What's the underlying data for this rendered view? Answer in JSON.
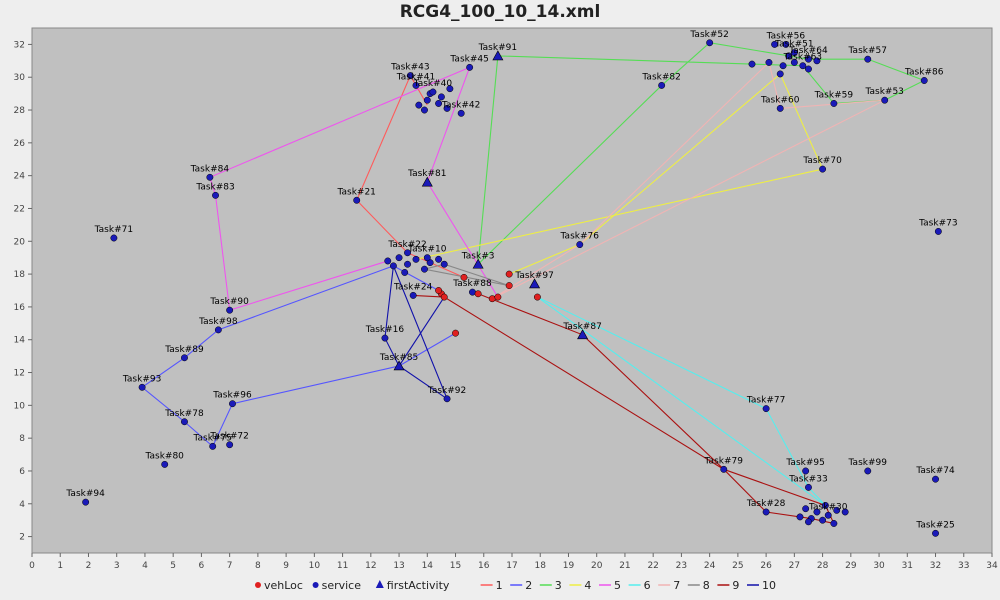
{
  "chart_data": {
    "type": "scatter",
    "title": "RCG4_100_10_14.xml",
    "xlim": [
      0,
      34
    ],
    "ylim": [
      1,
      33
    ],
    "xticks": [
      0,
      1,
      2,
      3,
      4,
      5,
      6,
      7,
      8,
      9,
      10,
      11,
      12,
      13,
      14,
      15,
      16,
      17,
      18,
      19,
      20,
      21,
      22,
      23,
      24,
      25,
      26,
      27,
      28,
      29,
      30,
      31,
      32,
      33,
      34
    ],
    "yticks": [
      2,
      4,
      6,
      8,
      10,
      12,
      14,
      16,
      18,
      20,
      22,
      24,
      26,
      28,
      30,
      32
    ],
    "colors": {
      "plot_bg": "#c0c0c0",
      "vehLoc": "#e02020",
      "service": "#1a1ab8",
      "firstActivity": "#1a1ab8",
      "route_1": "#ff5a5a",
      "route_2": "#5555ff",
      "route_3": "#55dd55",
      "route_4": "#eeee44",
      "route_5": "#ee55ee",
      "route_6": "#55eeee",
      "route_7": "#f0b4b4",
      "route_8": "#888888",
      "route_9": "#aa1111",
      "route_10": "#1111aa"
    },
    "legend": [
      {
        "label": "vehLoc",
        "marker": "circle",
        "color": "#e02020"
      },
      {
        "label": "service",
        "marker": "circle",
        "color": "#1a1ab8"
      },
      {
        "label": "firstActivity",
        "marker": "triangle",
        "color": "#1a1ab8"
      },
      {
        "label": "1",
        "marker": "line",
        "color": "#ff5a5a"
      },
      {
        "label": "2",
        "marker": "line",
        "color": "#5555ff"
      },
      {
        "label": "3",
        "marker": "line",
        "color": "#55dd55"
      },
      {
        "label": "4",
        "marker": "line",
        "color": "#eeee44"
      },
      {
        "label": "5",
        "marker": "line",
        "color": "#ee55ee"
      },
      {
        "label": "6",
        "marker": "line",
        "color": "#55eeee"
      },
      {
        "label": "7",
        "marker": "line",
        "color": "#f0b4b4"
      },
      {
        "label": "8",
        "marker": "line",
        "color": "#888888"
      },
      {
        "label": "9",
        "marker": "line",
        "color": "#aa1111"
      },
      {
        "label": "10",
        "marker": "line",
        "color": "#1111aa"
      }
    ],
    "vehLoc": [
      [
        14.5,
        16.8
      ],
      [
        14.6,
        16.6
      ],
      [
        15.3,
        17.8
      ],
      [
        15.8,
        16.8
      ],
      [
        16.3,
        16.5
      ],
      [
        16.5,
        16.6
      ],
      [
        16.9,
        17.3
      ],
      [
        16.9,
        18.0
      ],
      [
        17.9,
        16.6
      ],
      [
        15.0,
        14.4
      ],
      [
        14.4,
        17.0
      ]
    ],
    "service": [
      {
        "name": "Task#91",
        "x": 16.5,
        "y": 31.3,
        "first": true
      },
      {
        "name": "Task#52",
        "x": 24.0,
        "y": 32.1
      },
      {
        "name": "Task#56",
        "x": 26.7,
        "y": 32.0
      },
      {
        "name": "Task#51",
        "x": 27.0,
        "y": 31.5
      },
      {
        "name": "Task#64",
        "x": 27.5,
        "y": 31.1
      },
      {
        "name": "Task#57",
        "x": 29.6,
        "y": 31.1
      },
      {
        "name": "Task#63",
        "x": 27.3,
        "y": 30.7
      },
      {
        "name": "Task#86",
        "x": 31.6,
        "y": 29.8
      },
      {
        "name": "Task#45",
        "x": 15.5,
        "y": 30.6
      },
      {
        "name": "Task#43",
        "x": 13.4,
        "y": 30.1
      },
      {
        "name": "Task#41",
        "x": 13.6,
        "y": 29.5
      },
      {
        "name": "Task#40",
        "x": 14.2,
        "y": 29.1
      },
      {
        "name": "Task#42",
        "x": 15.2,
        "y": 27.8
      },
      {
        "name": "Task#82",
        "x": 22.3,
        "y": 29.5
      },
      {
        "name": "Task#60",
        "x": 26.5,
        "y": 28.1
      },
      {
        "name": "Task#59",
        "x": 28.4,
        "y": 28.4
      },
      {
        "name": "Task#53",
        "x": 30.2,
        "y": 28.6
      },
      {
        "name": "Task#70",
        "x": 28.0,
        "y": 24.4
      },
      {
        "name": "Task#84",
        "x": 6.3,
        "y": 23.9
      },
      {
        "name": "Task#83",
        "x": 6.5,
        "y": 22.8
      },
      {
        "name": "Task#81",
        "x": 14.0,
        "y": 23.6,
        "first": true
      },
      {
        "name": "Task#21",
        "x": 11.5,
        "y": 22.5
      },
      {
        "name": "Task#71",
        "x": 2.9,
        "y": 20.2
      },
      {
        "name": "Task#73",
        "x": 32.1,
        "y": 20.6
      },
      {
        "name": "Task#76",
        "x": 19.4,
        "y": 19.8
      },
      {
        "name": "Task#22",
        "x": 13.3,
        "y": 19.3
      },
      {
        "name": "Task#10",
        "x": 14.0,
        "y": 19.0
      },
      {
        "name": "Task#3",
        "x": 15.8,
        "y": 18.6,
        "first": true
      },
      {
        "name": "Task#97",
        "x": 17.8,
        "y": 17.4,
        "first": true
      },
      {
        "name": "Task#88",
        "x": 15.6,
        "y": 16.9
      },
      {
        "name": "Task#24",
        "x": 13.5,
        "y": 16.7
      },
      {
        "name": "Task#90",
        "x": 7.0,
        "y": 15.8
      },
      {
        "name": "Task#98",
        "x": 6.6,
        "y": 14.6
      },
      {
        "name": "Task#16",
        "x": 12.5,
        "y": 14.1
      },
      {
        "name": "Task#87",
        "x": 19.5,
        "y": 14.3,
        "first": true
      },
      {
        "name": "Task#89",
        "x": 5.4,
        "y": 12.9
      },
      {
        "name": "Task#85",
        "x": 13.0,
        "y": 12.4,
        "first": true
      },
      {
        "name": "Task#93",
        "x": 3.9,
        "y": 11.1
      },
      {
        "name": "Task#92",
        "x": 14.7,
        "y": 10.4
      },
      {
        "name": "Task#96",
        "x": 7.1,
        "y": 10.1
      },
      {
        "name": "Task#77",
        "x": 26.0,
        "y": 9.8
      },
      {
        "name": "Task#78",
        "x": 5.4,
        "y": 9.0
      },
      {
        "name": "Task#75",
        "x": 6.4,
        "y": 7.5
      },
      {
        "name": "Task#72",
        "x": 7.0,
        "y": 7.6
      },
      {
        "name": "Task#80",
        "x": 4.7,
        "y": 6.4
      },
      {
        "name": "Task#79",
        "x": 24.5,
        "y": 6.1
      },
      {
        "name": "Task#95",
        "x": 27.4,
        "y": 6.0
      },
      {
        "name": "Task#99",
        "x": 29.6,
        "y": 6.0
      },
      {
        "name": "Task#74",
        "x": 32.0,
        "y": 5.5
      },
      {
        "name": "Task#33",
        "x": 27.5,
        "y": 5.0
      },
      {
        "name": "Task#94",
        "x": 1.9,
        "y": 4.1
      },
      {
        "name": "Task#28",
        "x": 26.0,
        "y": 3.5
      },
      {
        "name": "Task#30",
        "x": 28.2,
        "y": 3.3
      },
      {
        "name": "Task#25",
        "x": 32.0,
        "y": 2.2
      }
    ],
    "cluster_center": [
      [
        13.0,
        19.0
      ],
      [
        13.3,
        18.6
      ],
      [
        13.6,
        18.9
      ],
      [
        14.1,
        18.7
      ],
      [
        12.8,
        18.5
      ],
      [
        13.9,
        18.3
      ],
      [
        14.4,
        18.9
      ],
      [
        12.6,
        18.8
      ],
      [
        13.2,
        18.1
      ],
      [
        14.6,
        18.6
      ]
    ],
    "cluster_ne": [
      [
        25.5,
        30.8
      ],
      [
        26.1,
        30.9
      ],
      [
        26.6,
        30.7
      ],
      [
        27.0,
        30.9
      ],
      [
        27.5,
        30.5
      ],
      [
        26.5,
        30.2
      ],
      [
        26.3,
        32.0
      ],
      [
        26.8,
        31.3
      ],
      [
        27.8,
        31.0
      ]
    ],
    "cluster_se": [
      [
        27.4,
        3.7
      ],
      [
        27.8,
        3.5
      ],
      [
        28.1,
        3.9
      ],
      [
        28.5,
        3.6
      ],
      [
        27.6,
        3.1
      ],
      [
        28.0,
        3.0
      ],
      [
        27.5,
        2.9
      ],
      [
        28.4,
        2.8
      ],
      [
        28.8,
        3.5
      ],
      [
        27.2,
        3.2
      ]
    ],
    "cluster_top": [
      [
        13.7,
        28.3
      ],
      [
        14.0,
        28.6
      ],
      [
        14.4,
        28.4
      ],
      [
        14.7,
        28.1
      ],
      [
        14.1,
        29.0
      ],
      [
        14.8,
        29.3
      ],
      [
        14.5,
        28.8
      ],
      [
        13.9,
        28.0
      ]
    ],
    "routes": [
      {
        "name": "1",
        "points": [
          [
            15.3,
            17.8
          ],
          [
            13.3,
            19.3
          ],
          [
            11.5,
            22.5
          ],
          [
            13.4,
            30.1
          ],
          [
            13.6,
            29.5
          ],
          [
            14.0,
            28.3
          ]
        ]
      },
      {
        "name": "2",
        "points": [
          [
            14.4,
            17.0
          ],
          [
            12.8,
            18.5
          ],
          [
            6.6,
            14.6
          ],
          [
            5.4,
            12.9
          ],
          [
            3.9,
            11.1
          ],
          [
            5.4,
            9.0
          ],
          [
            6.4,
            7.5
          ],
          [
            7.1,
            10.1
          ],
          [
            13.0,
            12.4
          ],
          [
            15.0,
            14.4
          ]
        ]
      },
      {
        "name": "3",
        "points": [
          [
            15.8,
            18.6
          ],
          [
            16.5,
            31.3
          ],
          [
            27.3,
            30.7
          ],
          [
            28.4,
            28.4
          ],
          [
            30.2,
            28.6
          ],
          [
            31.6,
            29.8
          ],
          [
            29.6,
            31.1
          ],
          [
            27.5,
            31.1
          ],
          [
            24.0,
            32.1
          ],
          [
            22.3,
            29.5
          ],
          [
            15.8,
            18.6
          ]
        ]
      },
      {
        "name": "4",
        "points": [
          [
            16.9,
            18.0
          ],
          [
            19.4,
            19.8
          ],
          [
            26.5,
            30.2
          ],
          [
            28.0,
            24.4
          ],
          [
            13.6,
            18.9
          ]
        ]
      },
      {
        "name": "5",
        "points": [
          [
            16.5,
            16.6
          ],
          [
            14.0,
            23.6
          ],
          [
            15.5,
            30.6
          ],
          [
            6.3,
            23.9
          ],
          [
            6.5,
            22.8
          ],
          [
            7.0,
            15.8
          ],
          [
            12.6,
            18.8
          ]
        ]
      },
      {
        "name": "6",
        "points": [
          [
            17.9,
            16.6
          ],
          [
            26.0,
            9.8
          ],
          [
            27.5,
            5.0
          ],
          [
            28.1,
            3.9
          ],
          [
            17.9,
            16.6
          ]
        ]
      },
      {
        "name": "7",
        "points": [
          [
            16.3,
            16.5
          ],
          [
            19.4,
            19.8
          ],
          [
            26.1,
            30.9
          ],
          [
            26.5,
            28.1
          ],
          [
            30.2,
            28.6
          ],
          [
            16.3,
            16.5
          ]
        ]
      },
      {
        "name": "8",
        "points": [
          [
            16.9,
            17.3
          ],
          [
            13.9,
            18.3
          ],
          [
            14.6,
            18.6
          ],
          [
            16.9,
            17.3
          ]
        ]
      },
      {
        "name": "9",
        "points": [
          [
            15.8,
            16.8
          ],
          [
            19.5,
            14.3
          ],
          [
            24.5,
            6.1
          ],
          [
            26.0,
            3.5
          ],
          [
            27.6,
            3.1
          ],
          [
            28.4,
            2.8
          ],
          [
            28.1,
            3.9
          ],
          [
            24.5,
            6.1
          ],
          [
            14.6,
            16.6
          ],
          [
            13.5,
            16.7
          ]
        ]
      },
      {
        "name": "10",
        "points": [
          [
            14.6,
            16.6
          ],
          [
            13.0,
            12.4
          ],
          [
            12.5,
            14.1
          ],
          [
            12.8,
            18.5
          ],
          [
            14.7,
            10.4
          ],
          [
            13.0,
            12.4
          ],
          [
            14.6,
            16.6
          ]
        ]
      }
    ]
  }
}
